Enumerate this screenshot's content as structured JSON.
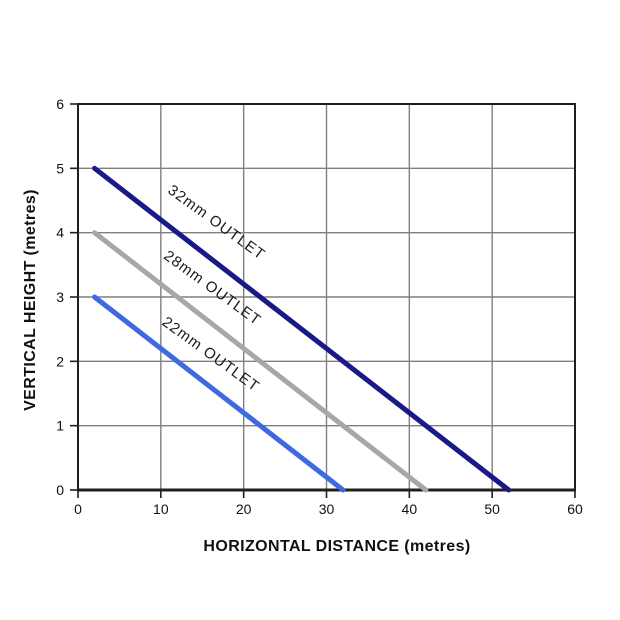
{
  "chart_data": {
    "type": "line",
    "title": "",
    "xlabel": "HORIZONTAL DISTANCE (metres)",
    "ylabel": "VERTICAL HEIGHT (metres)",
    "xlim": [
      0,
      60
    ],
    "ylim": [
      0,
      6
    ],
    "xticks": [
      0,
      10,
      20,
      30,
      40,
      50,
      60
    ],
    "yticks": [
      0,
      1,
      2,
      3,
      4,
      5,
      6
    ],
    "grid": true,
    "legend_position": "inline-labels",
    "series": [
      {
        "name": "32mm OUTLET",
        "color": "#191987",
        "x": [
          2,
          52
        ],
        "y": [
          5,
          0
        ],
        "label": {
          "x": 16.4,
          "y": 4.1,
          "angle": 36
        }
      },
      {
        "name": "28mm OUTLET",
        "color": "#a7a7a7",
        "x": [
          2,
          42
        ],
        "y": [
          4,
          0
        ],
        "label": {
          "x": 15.9,
          "y": 3.08,
          "angle": 36
        }
      },
      {
        "name": "22mm OUTLET",
        "color": "#3e69e1",
        "x": [
          2,
          32
        ],
        "y": [
          3,
          0
        ],
        "label": {
          "x": 15.7,
          "y": 2.05,
          "angle": 36
        }
      }
    ],
    "colors": {
      "grid": "#7f7f7f",
      "axis": "#1f1f1f",
      "tick_label": "#111111",
      "series_label": "#1a1a1a",
      "background": "#ffffff"
    }
  }
}
